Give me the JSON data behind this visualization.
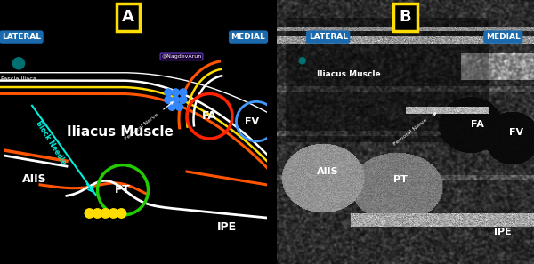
{
  "bg_color": "#000000",
  "panel_A_label": "A",
  "panel_B_label": "B",
  "lateral_label": "LATERAL",
  "medial_label": "MEDIAL",
  "label_bg": "#1a6aad",
  "label_fg": "#ffffff",
  "yellow_box_color": "#ffdd00",
  "cyan_sep_color": "#00cfff",
  "teal_dot_color": "#007070",
  "fascia_iliaca_label": "Fascia Iliaca",
  "iliacus_muscle_label": "Iliacus Muscle",
  "block_needle_label": "Block Needle",
  "femoral_nerve_label": "Femoral Nerve",
  "FA_label": "FA",
  "FV_label": "FV",
  "AIIS_label": "AIIS",
  "PT_label": "PT",
  "IPE_label": "IPE",
  "watermark": "@NagdevArun",
  "red_color": "#ff2200",
  "green_color": "#22cc00",
  "blue_dot_color": "#3388ff",
  "yellow_dot_color": "#ffdd00",
  "needle_color": "#00eedd",
  "white_color": "#ffffff",
  "orange_color": "#ff5500",
  "yellow_color": "#ffdd00",
  "fv_color": "#4499ff"
}
